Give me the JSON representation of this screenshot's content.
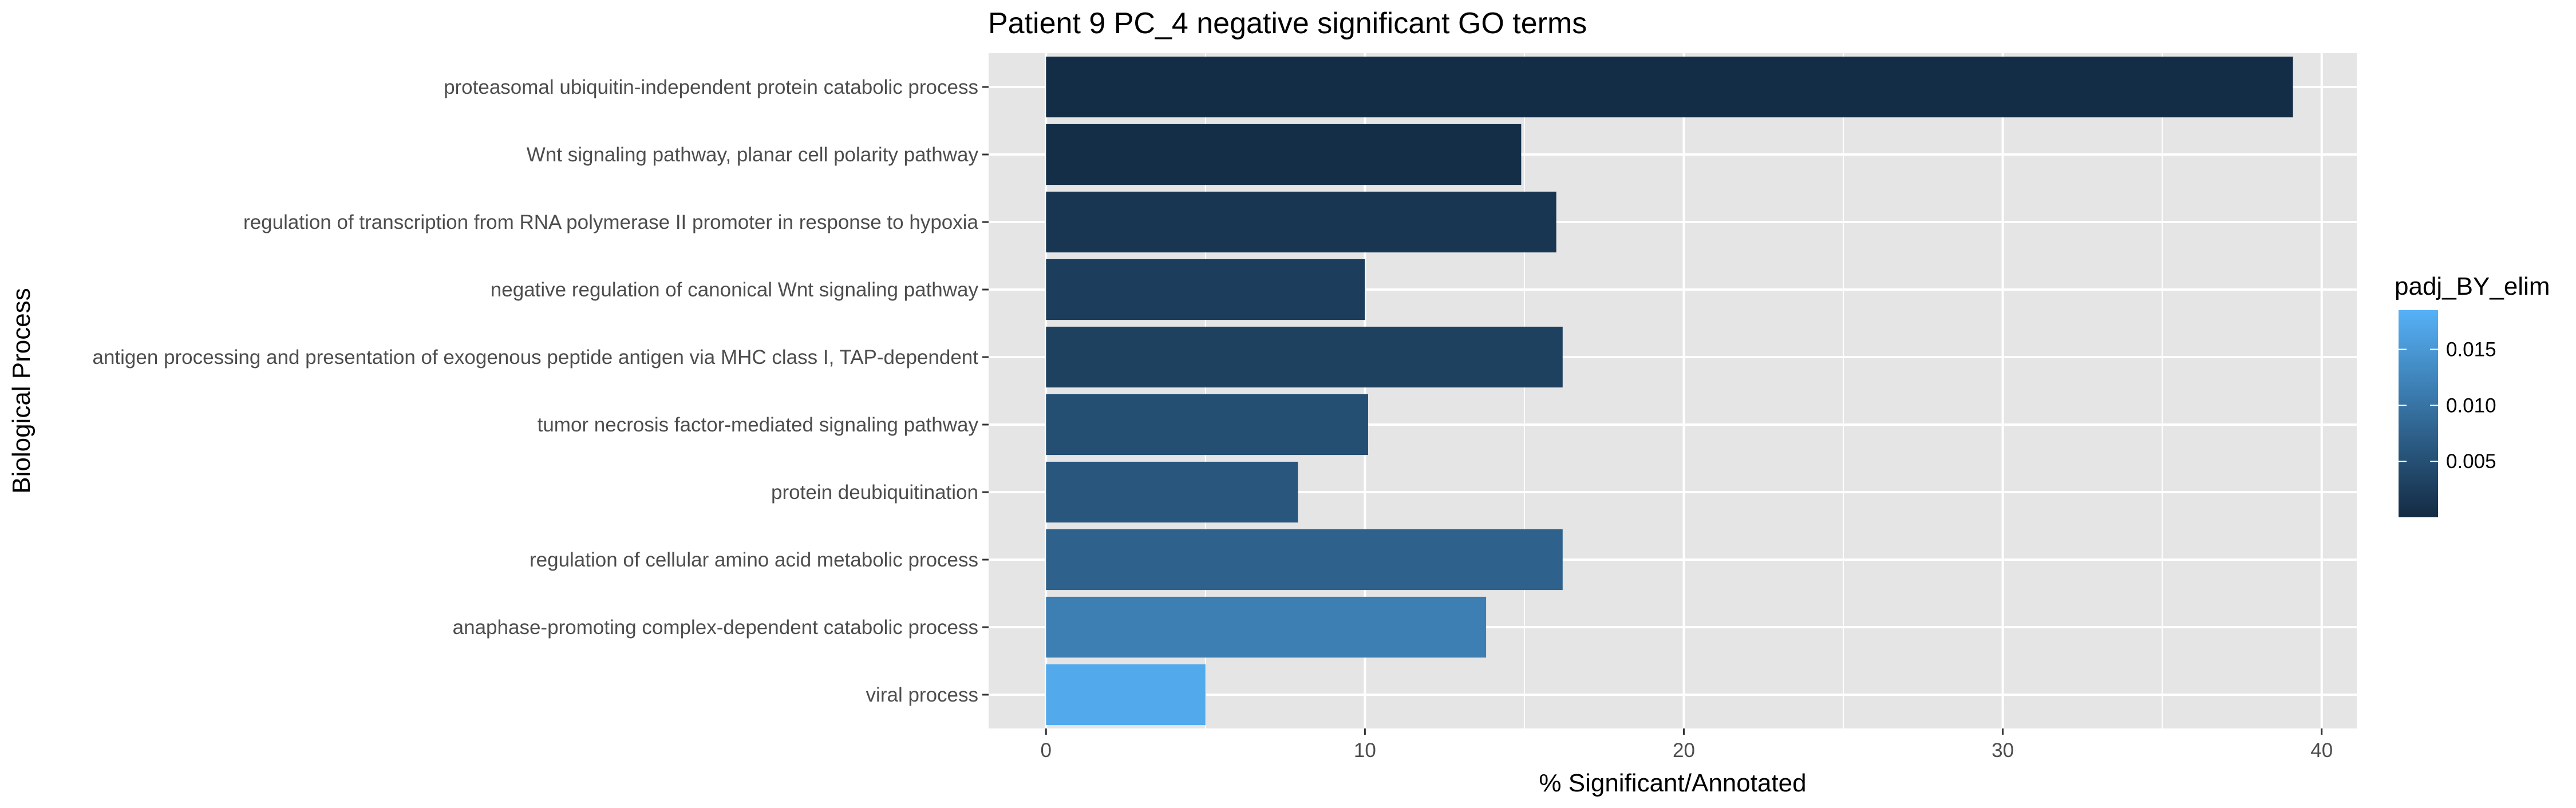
{
  "chart_data": {
    "type": "bar",
    "orientation": "horizontal",
    "title": "Patient 9 PC_4 negative significant GO terms",
    "xlabel": "% Significant/Annotated",
    "ylabel": "Biological Process",
    "xlim": [
      -1.8,
      41.1
    ],
    "x_ticks": [
      0,
      10,
      20,
      30,
      40
    ],
    "grid": true,
    "categories": [
      "proteasomal ubiquitin-independent protein catabolic process",
      "Wnt signaling pathway, planar cell polarity pathway",
      "regulation of transcription from RNA polymerase II promoter in response to hypoxia",
      "negative regulation of canonical Wnt signaling pathway",
      "antigen processing and presentation of exogenous peptide antigen via MHC class I, TAP-dependent",
      "tumor necrosis factor-mediated signaling pathway",
      "protein deubiquitination",
      "regulation of cellular amino acid metabolic process",
      "anaphase-promoting complex-dependent catabolic process",
      "viral process"
    ],
    "values": [
      39.1,
      14.9,
      16.0,
      10.0,
      16.2,
      10.1,
      7.9,
      16.2,
      13.8,
      5.0
    ],
    "fill_values": [
      0.0003,
      0.0004,
      0.0015,
      0.0025,
      0.003,
      0.0048,
      0.006,
      0.0075,
      0.0115,
      0.0175
    ],
    "colorbar": {
      "title": "padj_BY_elim",
      "min": 0.0,
      "max": 0.0185,
      "ticks": [
        0.005,
        0.01,
        0.015
      ],
      "tick_labels": [
        "0.005",
        "0.010",
        "0.015"
      ],
      "low_color": "#132B43",
      "high_color": "#56B1F7",
      "placement": "right"
    },
    "panel_background": "#E5E5E5",
    "grid_color": "#FFFFFF"
  }
}
